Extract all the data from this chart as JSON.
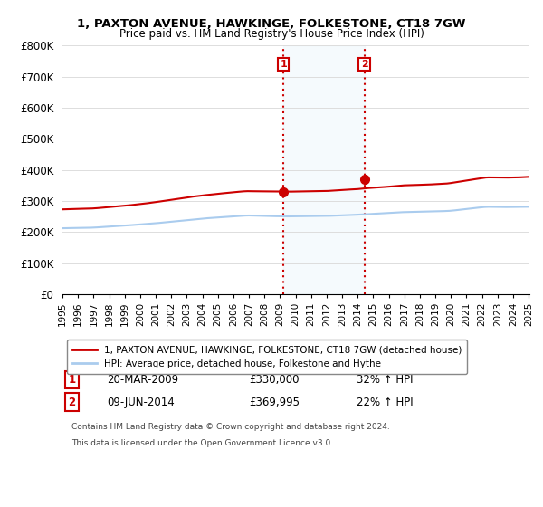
{
  "title": "1, PAXTON AVENUE, HAWKINGE, FOLKESTONE, CT18 7GW",
  "subtitle": "Price paid vs. HM Land Registry's House Price Index (HPI)",
  "legend_line1": "1, PAXTON AVENUE, HAWKINGE, FOLKESTONE, CT18 7GW (detached house)",
  "legend_line2": "HPI: Average price, detached house, Folkestone and Hythe",
  "annotation1_num": "1",
  "annotation1_date": "20-MAR-2009",
  "annotation1_price": "£330,000",
  "annotation1_hpi": "32% ↑ HPI",
  "annotation2_num": "2",
  "annotation2_date": "09-JUN-2014",
  "annotation2_price": "£369,995",
  "annotation2_hpi": "22% ↑ HPI",
  "footer1": "Contains HM Land Registry data © Crown copyright and database right 2024.",
  "footer2": "This data is licensed under the Open Government Licence v3.0.",
  "price_color": "#cc0000",
  "hpi_color": "#aaccee",
  "vline_color": "#cc0000",
  "highlight_color": "#ddeeff",
  "grid_color": "#dddddd",
  "ylim": [
    0,
    800000
  ],
  "yticks": [
    0,
    100000,
    200000,
    300000,
    400000,
    500000,
    600000,
    700000,
    800000
  ],
  "ytick_labels": [
    "£0",
    "£100K",
    "£200K",
    "£300K",
    "£400K",
    "£500K",
    "£600K",
    "£700K",
    "£800K"
  ],
  "sale1_year": 2009.22,
  "sale2_year": 2014.44,
  "sale1_price": 330000,
  "sale2_price": 369995
}
